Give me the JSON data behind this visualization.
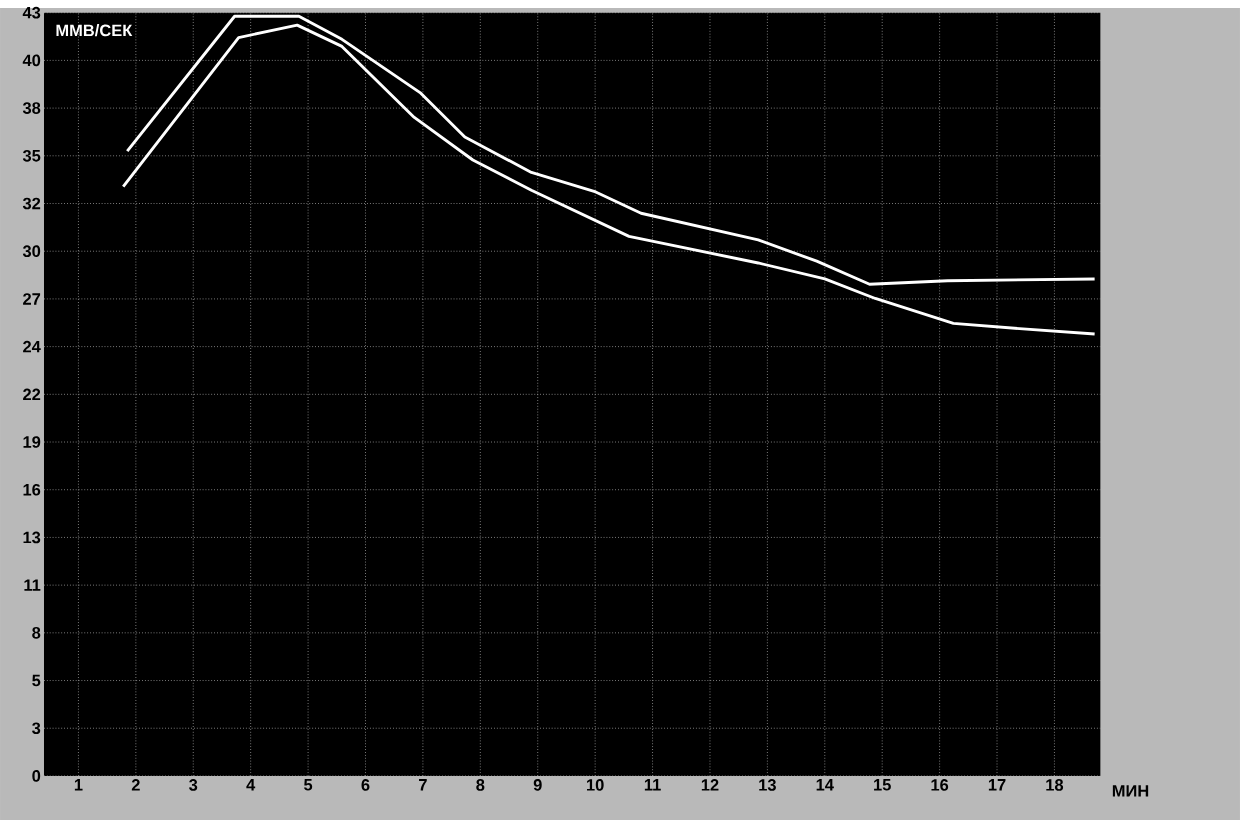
{
  "chart_data": {
    "type": "line",
    "ylabel": "ММВ/СЕК",
    "xlabel": "МИН",
    "xlim": [
      0.4,
      18.8
    ],
    "ylim": [
      0,
      43
    ],
    "xticks": [
      1,
      2,
      3,
      4,
      5,
      6,
      7,
      8,
      9,
      10,
      11,
      12,
      13,
      14,
      15,
      16,
      17,
      18
    ],
    "yticks": [
      {
        "value": 0,
        "label": "0"
      },
      {
        "value": 2.6875,
        "label": "3"
      },
      {
        "value": 5.375,
        "label": "5"
      },
      {
        "value": 8.0625,
        "label": "8"
      },
      {
        "value": 10.75,
        "label": "11"
      },
      {
        "value": 13.4375,
        "label": "13"
      },
      {
        "value": 16.125,
        "label": "16"
      },
      {
        "value": 18.8125,
        "label": "19"
      },
      {
        "value": 21.5,
        "label": "22"
      },
      {
        "value": 24.1875,
        "label": "24"
      },
      {
        "value": 26.875,
        "label": "27"
      },
      {
        "value": 29.5625,
        "label": "30"
      },
      {
        "value": 32.25,
        "label": "32"
      },
      {
        "value": 34.9375,
        "label": "35"
      },
      {
        "value": 37.625,
        "label": "38"
      },
      {
        "value": 40.3125,
        "label": "40"
      },
      {
        "value": 43,
        "label": "43"
      }
    ],
    "grid": true,
    "marker": "none",
    "line_style": "solid",
    "series": [
      {
        "color": "#ffffff",
        "x": [
          1.85,
          3.72,
          4.84,
          5.59,
          6.95,
          7.73,
          8.89,
          10.01,
          10.8,
          12.84,
          13.86,
          14.78,
          16.14,
          18.7
        ],
        "values": [
          35.2,
          42.8,
          42.8,
          41.5,
          38.5,
          36.0,
          34.0,
          32.9,
          31.7,
          30.2,
          29.0,
          27.7,
          27.9,
          28.0
        ]
      },
      {
        "color": "#ffffff",
        "x": [
          1.78,
          3.79,
          4.81,
          5.59,
          6.85,
          7.87,
          8.89,
          10.59,
          12.84,
          14.0,
          14.88,
          16.24,
          17.39,
          18.7
        ],
        "values": [
          33.2,
          41.6,
          42.3,
          41.1,
          37.1,
          34.7,
          33.0,
          30.4,
          28.9,
          28.0,
          26.9,
          25.5,
          25.2,
          24.9
        ]
      }
    ]
  }
}
